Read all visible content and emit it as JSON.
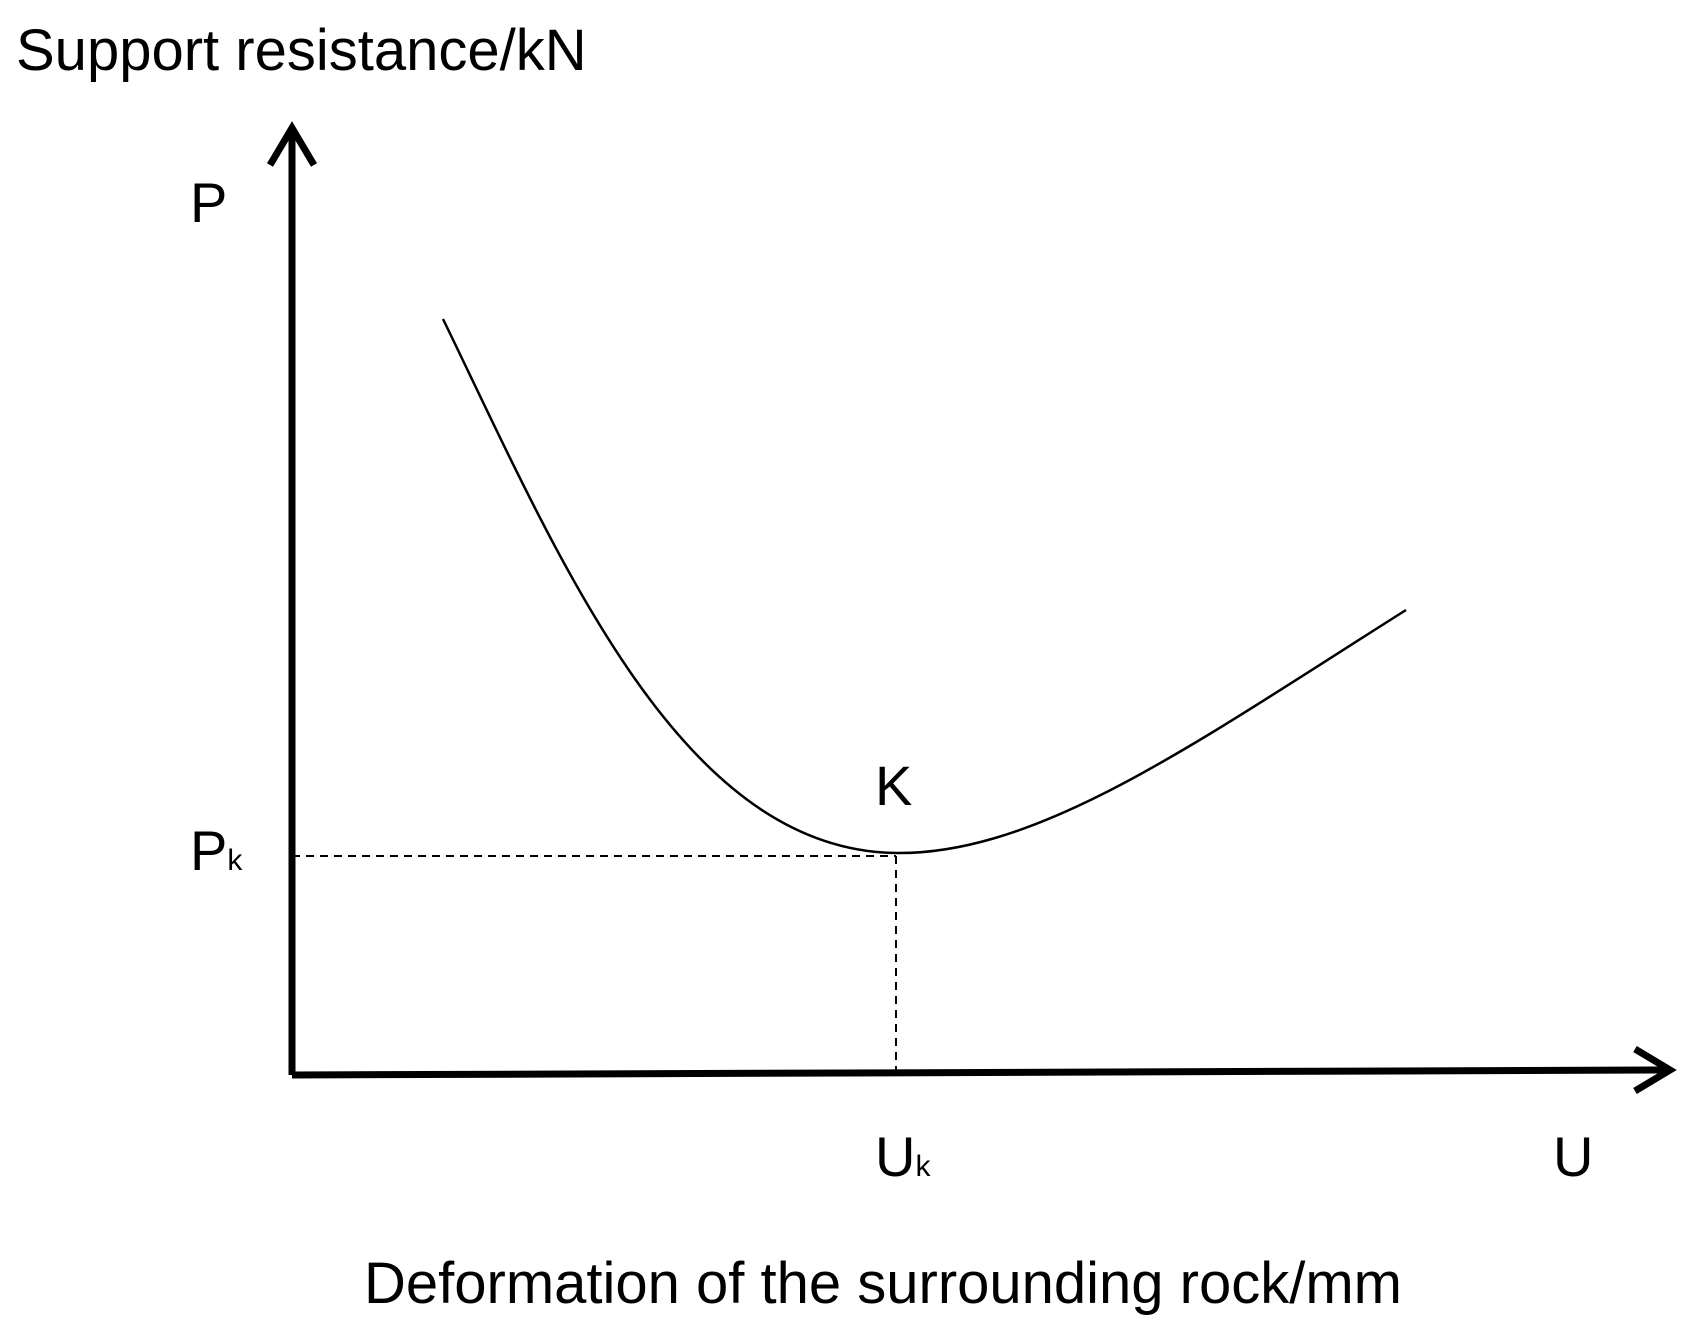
{
  "title": "Support resistance/kN",
  "y_axis": {
    "label": "P",
    "marker": {
      "text": "P",
      "subscript": "k"
    }
  },
  "x_axis": {
    "label": "U",
    "marker": {
      "text": "U",
      "subscript": "k"
    },
    "title": "Deformation of the surrounding rock/mm"
  },
  "point": {
    "label": "K"
  }
}
